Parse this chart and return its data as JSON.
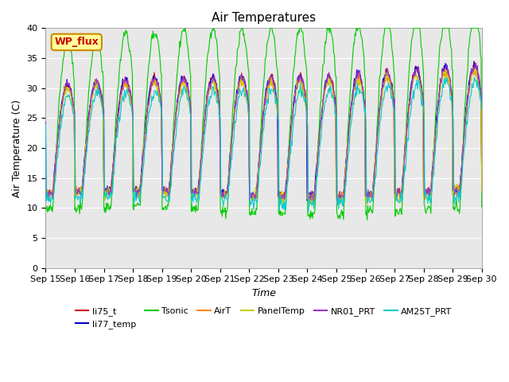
{
  "title": "Air Temperatures",
  "xlabel": "Time",
  "ylabel": "Air Temperature (C)",
  "ylim": [
    0,
    40
  ],
  "yticks": [
    0,
    5,
    10,
    15,
    20,
    25,
    30,
    35,
    40
  ],
  "date_labels": [
    "Sep 15",
    "Sep 16",
    "Sep 17",
    "Sep 18",
    "Sep 19",
    "Sep 20",
    "Sep 21",
    "Sep 22",
    "Sep 23",
    "Sep 24",
    "Sep 25",
    "Sep 26",
    "Sep 27",
    "Sep 28",
    "Sep 29",
    "Sep 30"
  ],
  "bg_color": "#e8e8e8",
  "series": {
    "li75_t": "#cc0000",
    "li77_temp": "#0000cc",
    "Tsonic": "#00cc00",
    "AirT": "#ff8800",
    "PanelTemp": "#cccc00",
    "NR01_PRT": "#9933cc",
    "AM25T_PRT": "#00cccc"
  },
  "legend_label": "WP_flux",
  "legend_fg": "#cc0000",
  "legend_bg": "#ffff99",
  "legend_border": "#cc8800",
  "num_days": 15,
  "points_per_day": 48
}
